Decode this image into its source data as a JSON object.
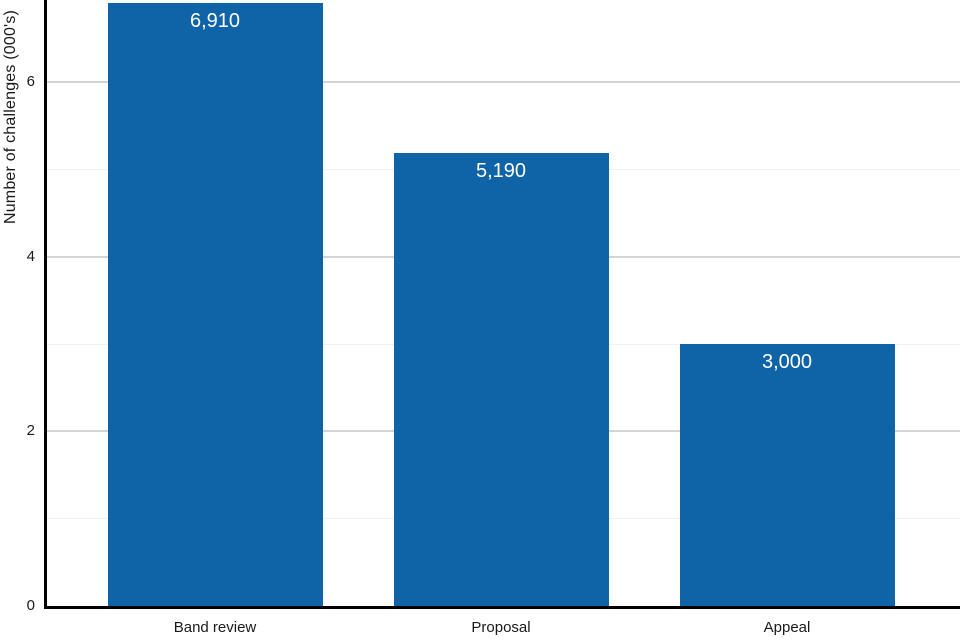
{
  "chart_data": {
    "type": "bar",
    "title": "",
    "categories": [
      "Band review",
      "Proposal",
      "Appeal"
    ],
    "values": [
      6910,
      5190,
      3000
    ],
    "value_labels": [
      "6,910",
      "5,190",
      "3,000"
    ],
    "axis_scale_divisor": 1000,
    "xlabel": "",
    "ylabel": "Number of challenges (000's)",
    "ylim": [
      0,
      6.94
    ],
    "yticks_major": [
      0,
      2,
      4,
      6
    ],
    "ytick_labels": [
      "0",
      "2",
      "4",
      "6"
    ],
    "yticks_minor": [
      1,
      3,
      5
    ],
    "legend": "none",
    "grid": "horizontal",
    "colors": {
      "bar": "#0f64a8",
      "bar_label": "#ffffff",
      "axis_line": "#000000",
      "tick_text": "#1a1a1a",
      "major_grid": "#d4d4d4",
      "minor_grid": "#f1f1f1",
      "background": "#ffffff"
    }
  }
}
